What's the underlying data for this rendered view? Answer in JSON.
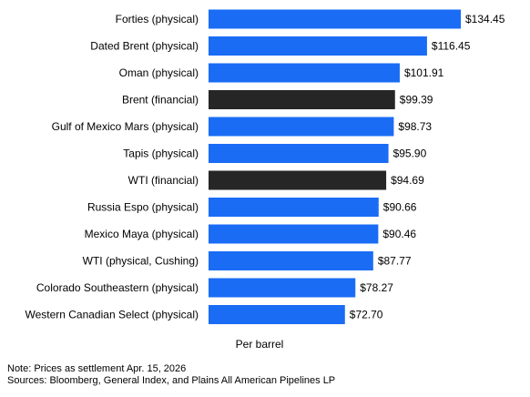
{
  "chart_data": {
    "type": "bar",
    "orientation": "horizontal",
    "categories": [
      "Forties (physical)",
      "Dated Brent (physical)",
      "Oman (physical)",
      "Brent (financial)",
      "Gulf of Mexico Mars (physical)",
      "Tapis (physical)",
      "WTI (financial)",
      "Russia Espo (physical)",
      "Mexico Maya (physical)",
      "WTI (physical, Cushing)",
      "Colorado Southeastern (physical)",
      "Western Canadian Select (physical)"
    ],
    "values": [
      134.45,
      116.45,
      101.91,
      99.39,
      98.73,
      95.9,
      94.69,
      90.66,
      90.46,
      87.77,
      78.27,
      72.7
    ],
    "value_labels": [
      "$134.45",
      "$116.45",
      "$101.91",
      "$99.39",
      "$98.73",
      "$95.90",
      "$94.69",
      "$90.66",
      "$90.46",
      "$87.77",
      "$78.27",
      "$72.70"
    ],
    "bar_kind": [
      "physical",
      "physical",
      "physical",
      "financial",
      "physical",
      "physical",
      "financial",
      "physical",
      "physical",
      "physical",
      "physical",
      "physical"
    ],
    "colors": {
      "physical": "#1a6cf5",
      "financial": "#262626"
    },
    "xlabel": "Per barrel",
    "xlim": [
      0,
      134.45
    ],
    "grid": false,
    "legend": "none"
  },
  "notes": {
    "note": "Note: Prices as settlement Apr. 15, 2026",
    "sources": "Sources: Bloomberg, General Index, and Plains All American Pipelines LP"
  }
}
